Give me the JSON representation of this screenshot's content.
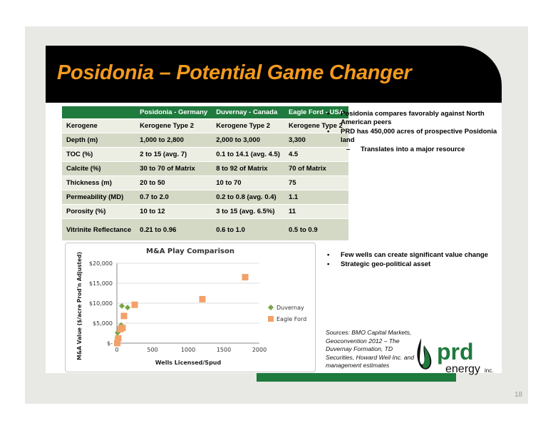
{
  "title": "Posidonia – Potential Game Changer",
  "table": {
    "headers": [
      "",
      "Posidonia - Germany",
      "Duvernay - Canada",
      "Eagle Ford - USA"
    ],
    "rows": [
      [
        "Kerogene",
        "Kerogene Type 2",
        "Kerogene Type 2",
        "Kerogene Type 2"
      ],
      [
        "Depth (m)",
        "1,000 to 2,800",
        "2,000 to 3,000",
        "3,300"
      ],
      [
        "TOC (%)",
        "2 to 15 (avg. 7)",
        "0.1 to 14.1 (avg. 4.5)",
        "4.5"
      ],
      [
        "Calcite (%)",
        "30 to 70 of Matrix",
        "8 to 92 of Matrix",
        "70 of Matrix"
      ],
      [
        "Thickness (m)",
        "20 to 50",
        "10 to 70",
        "75"
      ],
      [
        "Permeability (MD)",
        "0.7 to 2.0",
        "0.2 to 0.8 (avg. 0.4)",
        "1.1"
      ],
      [
        "Porosity (%)",
        "10 to 12",
        "3 to 15 (avg. 6.5%)",
        "11"
      ],
      [
        "Vitrinite Reflectance",
        "0.21 to 0.96",
        "0.6 to 1.0",
        "0.5 to 0.9"
      ]
    ]
  },
  "bullets_top": [
    "Posidonia compares favorably against North American peers",
    "PRD has 450,000 acres of prospective Posidonia land"
  ],
  "sub_bullet": "Translates into a major resource",
  "bullets_bottom": [
    "Few wells can create significant value change",
    "Strategic geo-political asset"
  ],
  "sources": "Sources: BMO Capital Markets, Geoconvention 2012 – The Duvernay Formation, TD Securities, Howard Weil Inc. and management estimates",
  "logo": {
    "name": "prd",
    "sub": "energy",
    "suffix": "inc."
  },
  "page_number": "18",
  "colors": {
    "title_orange": "#f39a1e",
    "brand_green": "#1f7a3d",
    "duvernay_green": "#77a643",
    "eagle_ford_orange": "#f2a16b"
  },
  "chart_data": {
    "type": "scatter",
    "title": "M&A Play Comparison",
    "xlabel": "Wells Licensed/Spud",
    "ylabel": "M&A Value ($/acre Prod'n Adjusted)",
    "xlim": [
      0,
      2000
    ],
    "ylim": [
      0,
      20000
    ],
    "x_ticks": [
      "0",
      "500",
      "1000",
      "1500",
      "2000"
    ],
    "y_ticks": [
      "$-",
      "$5,000",
      "$10,000",
      "$15,000",
      "$20,000"
    ],
    "legend_position": "right",
    "series": [
      {
        "name": "Duvernay",
        "color": "#77a643",
        "marker": "diamond",
        "points": [
          [
            5,
            1300
          ],
          [
            10,
            2600
          ],
          [
            30,
            3200
          ],
          [
            60,
            4500
          ],
          [
            70,
            9300
          ],
          [
            150,
            8900
          ]
        ]
      },
      {
        "name": "Eagle Ford",
        "color": "#f2a16b",
        "marker": "square",
        "points": [
          [
            5,
            0
          ],
          [
            20,
            1200
          ],
          [
            50,
            3500
          ],
          [
            80,
            3800
          ],
          [
            100,
            6800
          ],
          [
            250,
            9600
          ],
          [
            1200,
            11000
          ],
          [
            1800,
            16500
          ]
        ]
      }
    ]
  }
}
